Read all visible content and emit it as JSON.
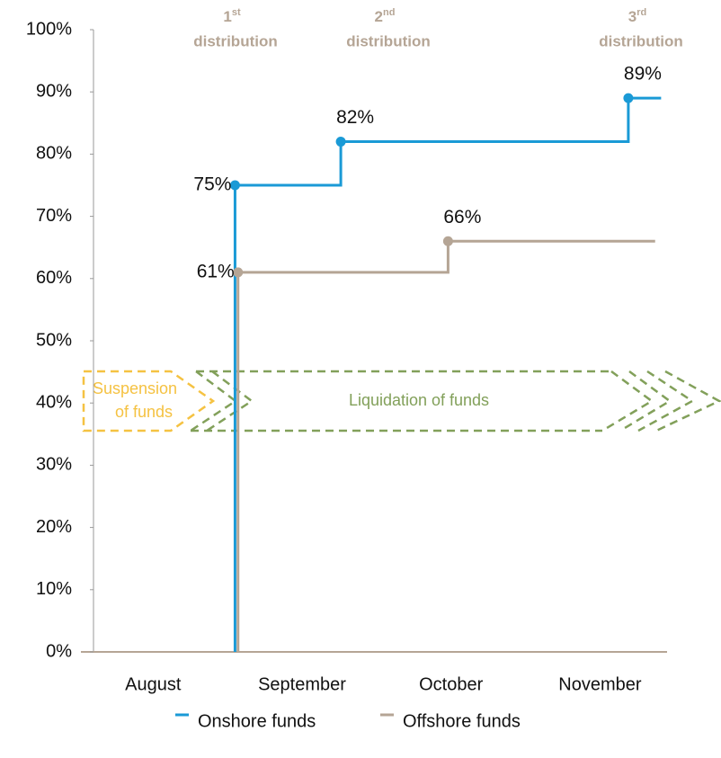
{
  "chart_data": {
    "type": "step",
    "step": "post",
    "xlim": [
      -0.4,
      3.45
    ],
    "xticks": [
      {
        "value": 0,
        "label": "August"
      },
      {
        "value": 1,
        "label": "September"
      },
      {
        "value": 2,
        "label": "October"
      },
      {
        "value": 3,
        "label": "November"
      }
    ],
    "ylim": [
      0,
      100
    ],
    "yticks": [
      {
        "value": 0,
        "label": "0%"
      },
      {
        "value": 10,
        "label": "10%"
      },
      {
        "value": 20,
        "label": "20%"
      },
      {
        "value": 30,
        "label": "30%"
      },
      {
        "value": 40,
        "label": "40%"
      },
      {
        "value": 50,
        "label": "50%"
      },
      {
        "value": 60,
        "label": "60%"
      },
      {
        "value": 70,
        "label": "70%"
      },
      {
        "value": 80,
        "label": "80%"
      },
      {
        "value": 90,
        "label": "90%"
      },
      {
        "value": 100,
        "label": "100%"
      }
    ],
    "grid": false,
    "legend": "bottom",
    "series": [
      {
        "name": "Onshore funds",
        "color": "#1a9ad6",
        "x": [
          0.55,
          0.55,
          1.26,
          3.19,
          3.41
        ],
        "values": [
          0,
          75,
          82,
          89,
          89
        ],
        "value_labels": [
          null,
          "75%",
          "82%",
          "89%",
          null
        ]
      },
      {
        "name": "Offshore funds",
        "color": "#b5a595",
        "x": [
          0.57,
          0.57,
          1.98,
          3.37
        ],
        "values": [
          0,
          61,
          66,
          66
        ],
        "value_labels": [
          null,
          "61%",
          "66%",
          null
        ]
      }
    ],
    "annotations": [
      {
        "number": "1",
        "suffix": "st",
        "text": "distribution"
      },
      {
        "number": "2",
        "suffix": "nd",
        "text": "distribution"
      },
      {
        "number": "3",
        "suffix": "rd",
        "text": "distribution"
      }
    ],
    "phases": [
      {
        "lines": [
          "Suspension",
          "of funds"
        ],
        "color": "#f5c242"
      },
      {
        "lines": [
          "Liquidation of funds"
        ],
        "color": "#82a05a"
      }
    ]
  }
}
